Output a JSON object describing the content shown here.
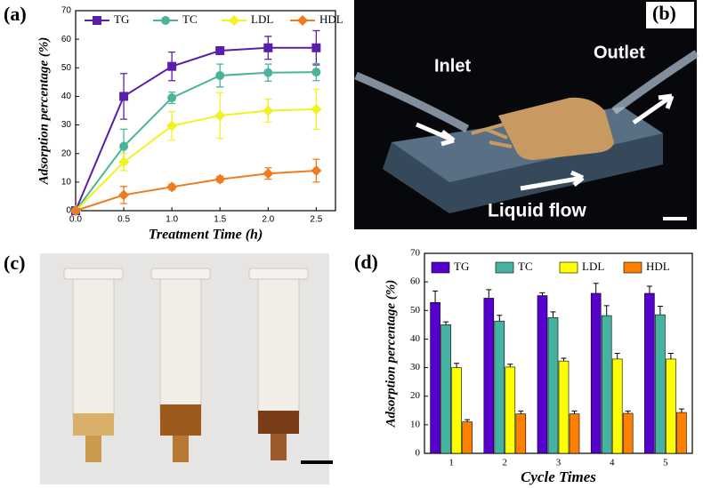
{
  "panel_labels": [
    "(a)",
    "(b)",
    "(c)",
    "(d)"
  ],
  "photo_b": {
    "labels": [
      "Inlet",
      "Outlet",
      "Liquid flow"
    ]
  },
  "chart_data": [
    {
      "type": "line",
      "xlabel": "Treatment Time (h)",
      "ylabel": "Adsorption percentage (%)",
      "x": [
        0,
        0.5,
        1,
        1.5,
        2,
        2.5
      ],
      "xlim": [
        0,
        2.7
      ],
      "xticks": [
        {
          "value": 0,
          "label": "0.0"
        },
        {
          "value": 0.5,
          "label": "0.5"
        },
        {
          "value": 1,
          "label": "1.0"
        },
        {
          "value": 1.5,
          "label": "1.5"
        },
        {
          "value": 2,
          "label": "2.0"
        },
        {
          "value": 2.5,
          "label": "2.5"
        }
      ],
      "ylim": [
        0,
        70
      ],
      "yticks": [
        0,
        10,
        20,
        30,
        40,
        50,
        60,
        70
      ],
      "series": [
        {
          "name": "TG",
          "color": "#5a1fa8",
          "marker": "square",
          "values": [
            0,
            40,
            50.5,
            56,
            57,
            57
          ],
          "errors": [
            0,
            8,
            5,
            1,
            4,
            6
          ]
        },
        {
          "name": "TC",
          "color": "#4cb39b",
          "marker": "circle",
          "values": [
            0,
            22.5,
            39.5,
            47.3,
            48.3,
            48.5
          ],
          "errors": [
            0,
            6,
            2,
            4,
            3,
            3
          ]
        },
        {
          "name": "LDL",
          "color": "#f2f21e",
          "marker": "diamond",
          "values": [
            0,
            17,
            29.7,
            33.3,
            35,
            35.5
          ],
          "errors": [
            0,
            3,
            5,
            8,
            4,
            7
          ]
        },
        {
          "name": "HDL",
          "color": "#f07a1e",
          "marker": "diamond",
          "values": [
            0,
            5.5,
            8.3,
            11,
            13,
            14
          ],
          "errors": [
            0,
            3,
            1,
            1,
            2,
            4
          ]
        }
      ]
    },
    {
      "type": "bar",
      "xlabel": "Cycle Times",
      "ylabel": "Adsorption percentage (%)",
      "categories": [
        "1",
        "2",
        "3",
        "4",
        "5"
      ],
      "ylim": [
        0,
        70
      ],
      "yticks": [
        0,
        10,
        20,
        30,
        40,
        50,
        60,
        70
      ],
      "series": [
        {
          "name": "TG",
          "color": "#5500cc",
          "values": [
            52.8,
            54.3,
            55.2,
            56,
            56
          ],
          "errors": [
            4,
            3,
            1,
            3.5,
            2.5
          ]
        },
        {
          "name": "TC",
          "color": "#45b3a0",
          "values": [
            45,
            46.3,
            47.5,
            48.2,
            48.5
          ],
          "errors": [
            1,
            2,
            2,
            3.5,
            3
          ]
        },
        {
          "name": "LDL",
          "color": "#ffff00",
          "values": [
            30,
            30.2,
            32.3,
            33,
            33
          ],
          "errors": [
            1.5,
            1,
            1,
            2,
            2
          ]
        },
        {
          "name": "HDL",
          "color": "#ff8000",
          "values": [
            11,
            13.8,
            13.8,
            14,
            14.3
          ],
          "errors": [
            0.8,
            1,
            1,
            0.8,
            1.2
          ]
        }
      ]
    }
  ]
}
